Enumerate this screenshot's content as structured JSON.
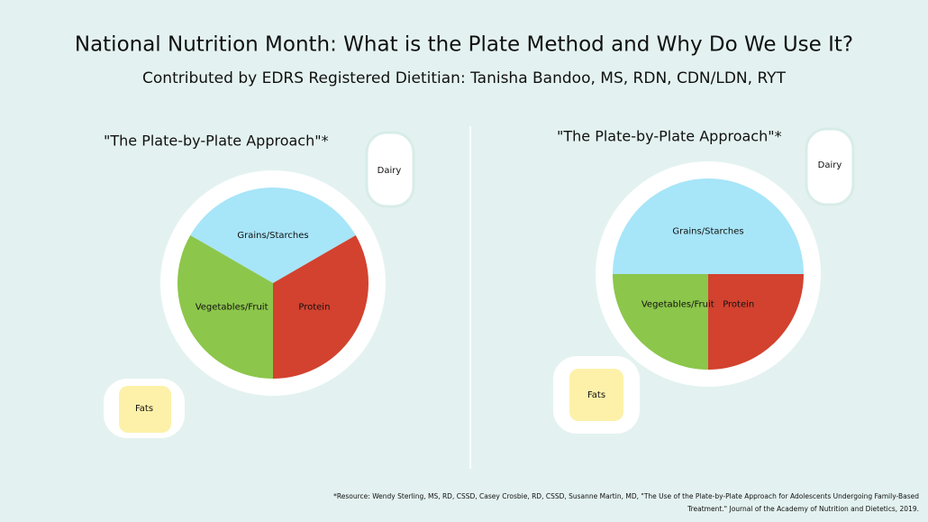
{
  "header": {
    "title": "National Nutrition Month: What is the Plate Method and Why Do We Use It?",
    "subtitle": "Contributed by EDRS Registered Dietitian: Tanisha Bandoo, MS, RDN, CDN/LDN, RYT"
  },
  "chart_data": [
    {
      "type": "pie",
      "title": "\"The Plate-by-Plate Approach\"*",
      "categories": [
        "Grains/Starches",
        "Protein",
        "Vegetables/Fruit"
      ],
      "values": [
        33.3,
        33.3,
        33.3
      ],
      "colors": [
        "#a7e5f8",
        "#d2422f",
        "#8cc64b"
      ],
      "annotations": [
        "Dairy",
        "Fats"
      ]
    },
    {
      "type": "pie",
      "title": "\"The Plate-by-Plate Approach\"*",
      "categories": [
        "Grains/Starches",
        "Protein",
        "Vegetables/Fruit"
      ],
      "values": [
        50,
        25,
        25
      ],
      "colors": [
        "#a7e5f8",
        "#d2422f",
        "#8cc64b"
      ],
      "annotations": [
        "Dairy",
        "Fats"
      ]
    }
  ],
  "footnote": [
    "*Resource:  Wendy Sterling, MS, RD, CSSD, Casey Crosbie, RD, CSSD, Susanne Martin, MD, \"The Use of the Plate-by-Plate Approach for Adolescents Undergoing Family-Based",
    "Treatment.\" Journal of the Academy of Nutrition and Dietetics, 2019."
  ]
}
